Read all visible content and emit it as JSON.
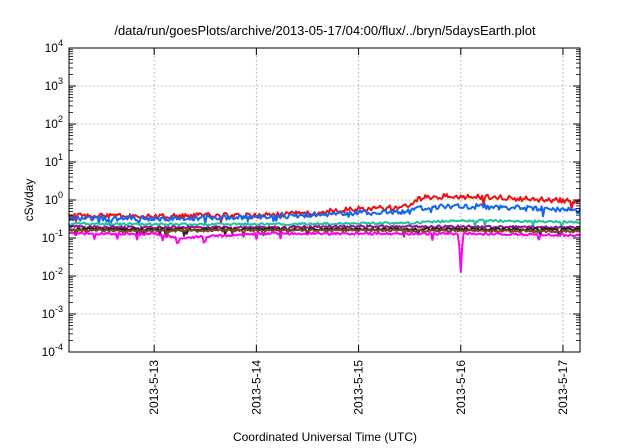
{
  "chart_data": {
    "type": "line",
    "title": "/data/run/goesPlots/archive/2013-05-17/04:00/flux/../bryn/5daysEarth.plot",
    "xlabel": "Coordinated Universal Time (UTC)",
    "ylabel": "cSv/day",
    "yscale": "log",
    "ylim": [
      0.0001,
      10000
    ],
    "xlim": [
      "2013-05-12 04:00",
      "2013-05-17 04:00"
    ],
    "grid": true,
    "y_ticks": [
      {
        "value": 0.0001,
        "base": "10",
        "exp": "-4"
      },
      {
        "value": 0.001,
        "base": "10",
        "exp": "-3"
      },
      {
        "value": 0.01,
        "base": "10",
        "exp": "-2"
      },
      {
        "value": 0.1,
        "base": "10",
        "exp": "-1"
      },
      {
        "value": 1,
        "base": "10",
        "exp": "0"
      },
      {
        "value": 10,
        "base": "10",
        "exp": "1"
      },
      {
        "value": 100,
        "base": "10",
        "exp": "2"
      },
      {
        "value": 1000,
        "base": "10",
        "exp": "3"
      },
      {
        "value": 10000,
        "base": "10",
        "exp": "4"
      }
    ],
    "x_ticks": [
      {
        "value": "2013-05-13",
        "label": "2013-5-13"
      },
      {
        "value": "2013-05-14",
        "label": "2013-5-14"
      },
      {
        "value": "2013-05-15",
        "label": "2013-5-15"
      },
      {
        "value": "2013-05-16",
        "label": "2013-5-16"
      },
      {
        "value": "2013-05-17",
        "label": "2013-5-17"
      }
    ],
    "series": [
      {
        "color": "#ee1111",
        "x": [
          "2013-05-12 04:00",
          "2013-05-12 12:00",
          "2013-05-13 00:00",
          "2013-05-13 12:00",
          "2013-05-14 00:00",
          "2013-05-14 12:00",
          "2013-05-14 18:00",
          "2013-05-15 00:00",
          "2013-05-15 08:00",
          "2013-05-15 12:00",
          "2013-05-15 14:00",
          "2013-05-15 20:00",
          "2013-05-16 00:00",
          "2013-05-16 08:00",
          "2013-05-16 16:00",
          "2013-05-17 00:00",
          "2013-05-17 04:00"
        ],
        "values": [
          0.38,
          0.38,
          0.36,
          0.4,
          0.38,
          0.45,
          0.52,
          0.58,
          0.62,
          0.68,
          1.1,
          1.25,
          1.2,
          1.2,
          1.05,
          0.95,
          0.85
        ]
      },
      {
        "color": "#1166ee",
        "x": [
          "2013-05-12 04:00",
          "2013-05-12 12:00",
          "2013-05-13 00:00",
          "2013-05-13 12:00",
          "2013-05-14 00:00",
          "2013-05-14 12:00",
          "2013-05-14 18:00",
          "2013-05-15 00:00",
          "2013-05-15 08:00",
          "2013-05-15 12:00",
          "2013-05-15 14:00",
          "2013-05-15 20:00",
          "2013-05-16 00:00",
          "2013-05-16 08:00",
          "2013-05-16 16:00",
          "2013-05-17 00:00",
          "2013-05-17 04:00"
        ],
        "values": [
          0.34,
          0.33,
          0.32,
          0.35,
          0.36,
          0.4,
          0.44,
          0.46,
          0.48,
          0.5,
          0.62,
          0.7,
          0.7,
          0.66,
          0.6,
          0.55,
          0.52
        ]
      },
      {
        "color": "#22c49a",
        "x": [
          "2013-05-12 04:00",
          "2013-05-13 00:00",
          "2013-05-14 00:00",
          "2013-05-15 00:00",
          "2013-05-15 12:00",
          "2013-05-16 00:00",
          "2013-05-16 12:00",
          "2013-05-17 00:00",
          "2013-05-17 04:00"
        ],
        "values": [
          0.24,
          0.23,
          0.23,
          0.24,
          0.25,
          0.29,
          0.28,
          0.27,
          0.26
        ]
      },
      {
        "color": "#9b0d9b",
        "x": [
          "2013-05-12 04:00",
          "2013-05-13 00:00",
          "2013-05-14 00:00",
          "2013-05-15 00:00",
          "2013-05-16 00:00",
          "2013-05-17 00:00",
          "2013-05-17 04:00"
        ],
        "values": [
          0.2,
          0.19,
          0.19,
          0.2,
          0.2,
          0.19,
          0.19
        ]
      },
      {
        "color": "#222222",
        "x": [
          "2013-05-12 04:00",
          "2013-05-13 00:00",
          "2013-05-14 00:00",
          "2013-05-15 00:00",
          "2013-05-16 00:00",
          "2013-05-17 00:00",
          "2013-05-17 04:00"
        ],
        "values": [
          0.17,
          0.17,
          0.17,
          0.17,
          0.17,
          0.17,
          0.17
        ]
      },
      {
        "color": "#7a4a1a",
        "x": [
          "2013-05-12 04:00",
          "2013-05-13 00:00",
          "2013-05-14 00:00",
          "2013-05-15 00:00",
          "2013-05-16 00:00",
          "2013-05-17 00:00",
          "2013-05-17 04:00"
        ],
        "values": [
          0.16,
          0.155,
          0.16,
          0.16,
          0.155,
          0.15,
          0.15
        ]
      },
      {
        "color": "#ff00ee",
        "x": [
          "2013-05-12 04:00",
          "2013-05-13 00:00",
          "2013-05-13 06:00",
          "2013-05-14 00:00",
          "2013-05-15 00:00",
          "2013-05-15 23:30",
          "2013-05-16 00:00",
          "2013-05-16 00:30",
          "2013-05-17 00:00",
          "2013-05-17 04:00"
        ],
        "values": [
          0.13,
          0.13,
          0.1,
          0.13,
          0.13,
          0.13,
          0.013,
          0.13,
          0.12,
          0.12
        ]
      }
    ]
  }
}
